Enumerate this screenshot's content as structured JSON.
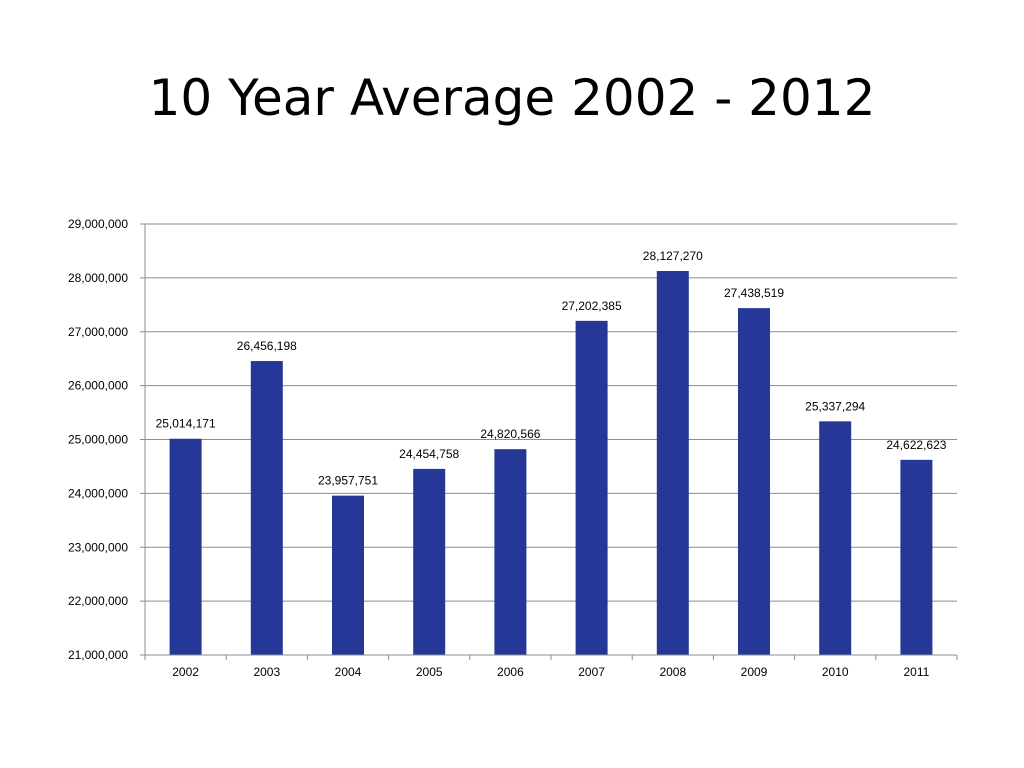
{
  "slide": {
    "title": "10 Year Average 2002 - 2012"
  },
  "colors": {
    "bar": "#253897",
    "gridline": "#8c8c8c",
    "axis": "#8c8c8c"
  },
  "chart_data": {
    "type": "bar",
    "title": "10 Year Average 2002 - 2012",
    "xlabel": "",
    "ylabel": "",
    "categories": [
      "2002",
      "2003",
      "2004",
      "2005",
      "2006",
      "2007",
      "2008",
      "2009",
      "2010",
      "2011"
    ],
    "values": [
      25014171,
      26456198,
      23957751,
      24454758,
      24820566,
      27202385,
      28127270,
      27438519,
      25337294,
      24622623
    ],
    "data_labels": [
      "25,014,171",
      "26,456,198",
      "23,957,751",
      "24,454,758",
      "24,820,566",
      "27,202,385",
      "28,127,270",
      "27,438,519",
      "25,337,294",
      "24,622,623"
    ],
    "ylim": [
      21000000,
      29000000
    ],
    "yticks": [
      21000000,
      22000000,
      23000000,
      24000000,
      25000000,
      26000000,
      27000000,
      28000000,
      29000000
    ],
    "ytick_labels": [
      "21,000,000",
      "22,000,000",
      "23,000,000",
      "24,000,000",
      "25,000,000",
      "26,000,000",
      "27,000,000",
      "28,000,000",
      "29,000,000"
    ],
    "grid": true,
    "legend": "none"
  }
}
